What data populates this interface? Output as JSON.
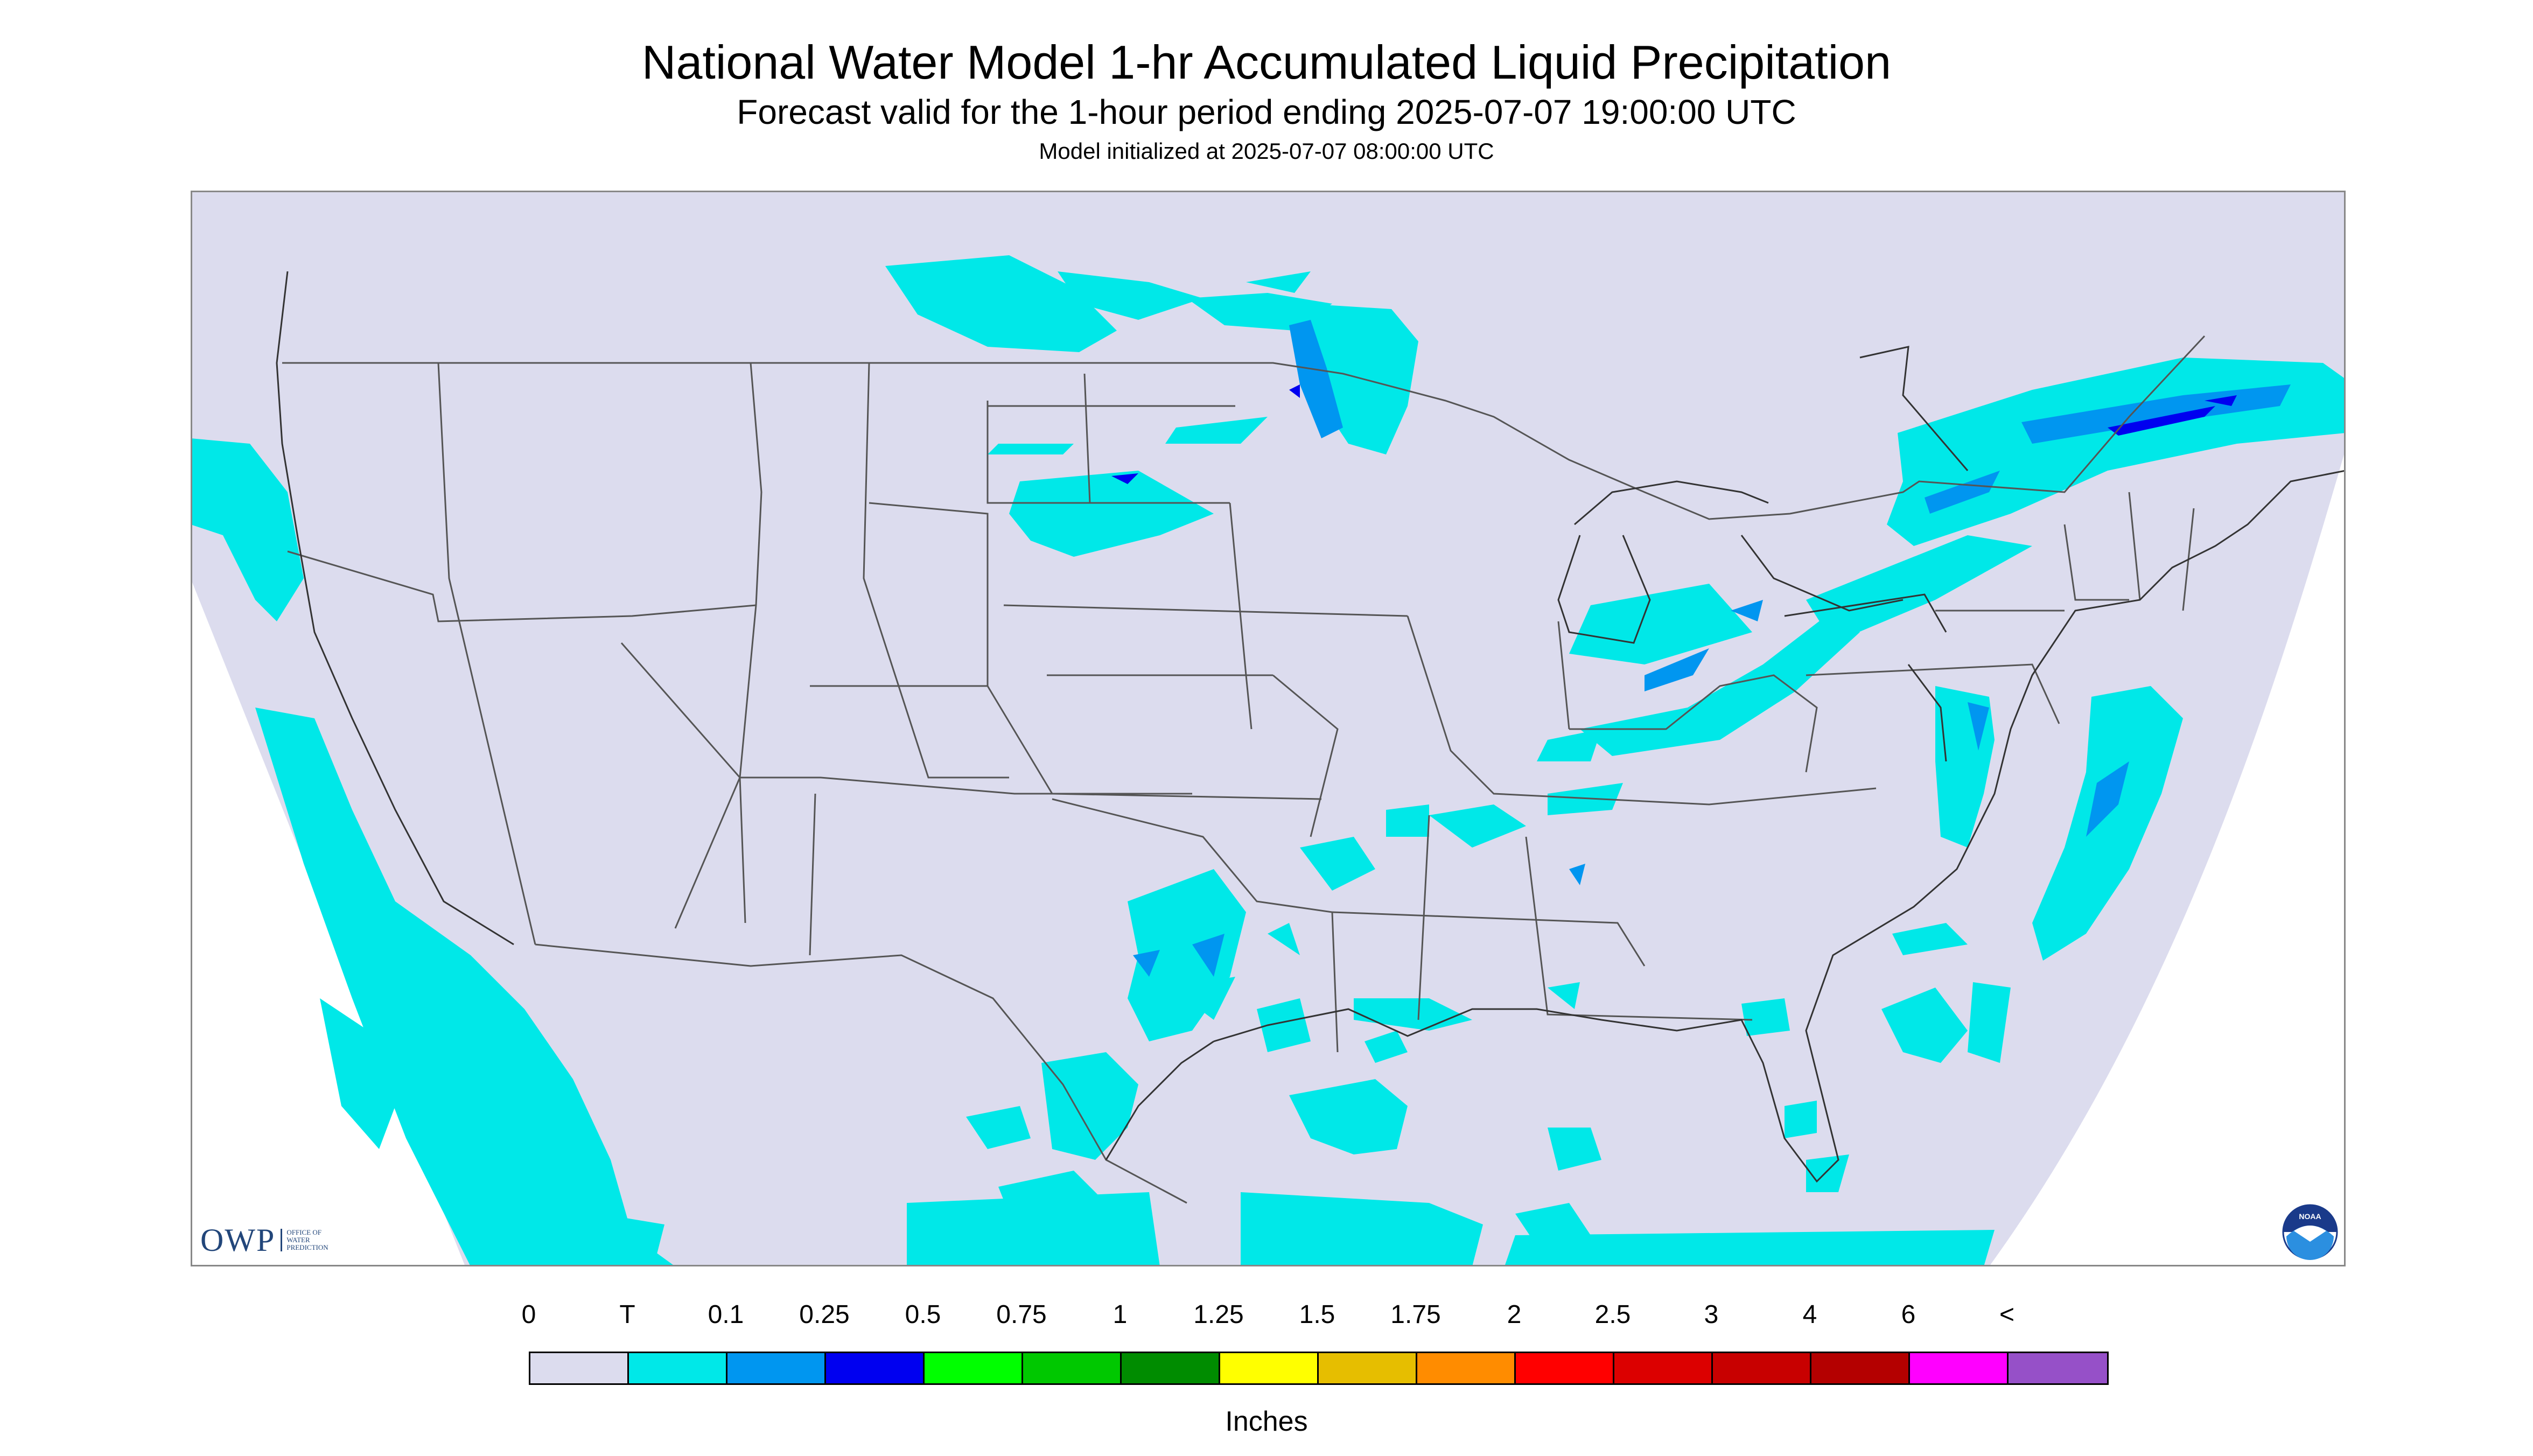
{
  "title": "National Water Model 1-hr Accumulated Liquid Precipitation",
  "subtitle": "Forecast valid for the 1-hour period ending 2025-07-07 19:00:00 UTC",
  "init_line": "Model initialized at 2025-07-07 08:00:00 UTC",
  "colors": {
    "background": "#dcdcee",
    "trace": "#00e8e8",
    "tenth": "#0096f0",
    "quarter": "#0000f0",
    "boundary": "#555555",
    "outside": "#ffffff"
  },
  "logos": {
    "owp_letters": "OWP",
    "owp_text": "OFFICE OF\nWATER\nPREDICTION",
    "noaa_text": "NOAA",
    "noaa_icon": "noaa-seal-icon"
  },
  "legend": {
    "labels": [
      "0",
      "T",
      "0.1",
      "0.25",
      "0.5",
      "0.75",
      "1",
      "1.25",
      "1.5",
      "1.75",
      "2",
      "2.5",
      "3",
      "4",
      "6",
      "<"
    ],
    "colors": [
      "#dcdcee",
      "#00e8e8",
      "#0096f0",
      "#0000f0",
      "#00ff00",
      "#00c800",
      "#008c00",
      "#ffff00",
      "#e6be00",
      "#ff8c00",
      "#ff0000",
      "#dc0000",
      "#c80000",
      "#b40000",
      "#ff00ff",
      "#9650c8"
    ],
    "units": "Inches"
  }
}
